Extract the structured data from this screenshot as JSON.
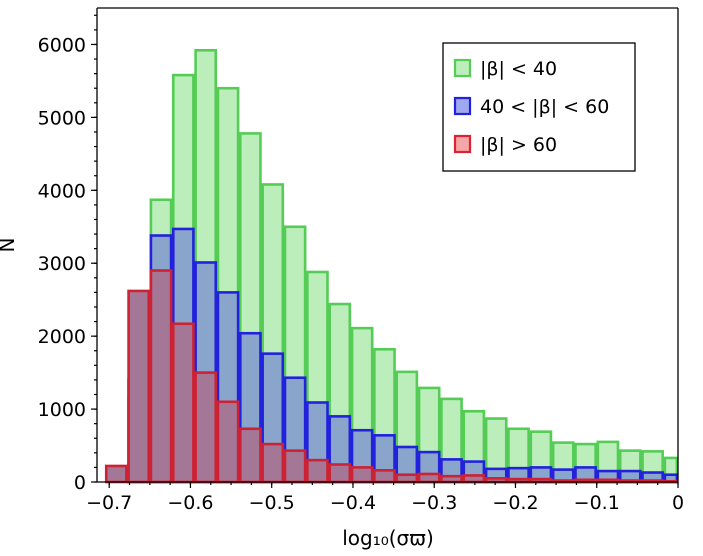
{
  "chart_data": {
    "type": "bar",
    "xlabel": "log₁₀(σϖ)",
    "ylabel": "N",
    "xlim": [
      -0.715,
      0.0
    ],
    "ylim": [
      0,
      6500
    ],
    "x_ticks": [
      -0.7,
      -0.6,
      -0.5,
      -0.4,
      -0.3,
      -0.2,
      -0.1,
      0.0
    ],
    "x_tick_labels": [
      "−0.7",
      "−0.6",
      "−0.5",
      "−0.4",
      "−0.3",
      "−0.2",
      "−0.1",
      "0"
    ],
    "y_ticks": [
      0,
      1000,
      2000,
      3000,
      4000,
      5000,
      6000
    ],
    "y_tick_labels": [
      "0",
      "1000",
      "2000",
      "3000",
      "4000",
      "5000",
      "6000"
    ],
    "bin_edges": [
      -0.705,
      -0.6775,
      -0.65,
      -0.6225,
      -0.595,
      -0.5675,
      -0.54,
      -0.5125,
      -0.485,
      -0.4575,
      -0.43,
      -0.4025,
      -0.375,
      -0.3475,
      -0.32,
      -0.2925,
      -0.265,
      -0.2375,
      -0.21,
      -0.1825,
      -0.155,
      -0.1275,
      -0.1,
      -0.0725,
      -0.045,
      -0.0175,
      0.0
    ],
    "legend_position": "top-right",
    "series": [
      {
        "name": "|β| < 40",
        "fill": "#bbeebb",
        "edge": "#55cc55",
        "values": [
          0,
          1150,
          3870,
          5580,
          5920,
          5400,
          4780,
          4080,
          3500,
          2880,
          2440,
          2110,
          1820,
          1510,
          1290,
          1140,
          970,
          870,
          730,
          690,
          540,
          520,
          550,
          430,
          420,
          330,
          300
        ]
      },
      {
        "name": "40 < |β| < 60",
        "fill": "#8aa5cc",
        "edge": "#2222dd",
        "values": [
          0,
          1400,
          3380,
          3470,
          3010,
          2600,
          2040,
          1760,
          1430,
          1090,
          900,
          710,
          640,
          480,
          410,
          310,
          280,
          180,
          190,
          200,
          170,
          200,
          150,
          150,
          130,
          100,
          100
        ]
      },
      {
        "name": "|β| > 60",
        "fill": "#a47797",
        "edge": "#cc2233",
        "values": [
          220,
          2620,
          2900,
          2170,
          1500,
          1100,
          730,
          520,
          430,
          300,
          240,
          200,
          160,
          100,
          110,
          80,
          90,
          50,
          40,
          40,
          20,
          30,
          30,
          20,
          20,
          10,
          10
        ]
      }
    ],
    "legend_entries": [
      {
        "label": "|β| < 40",
        "fill": "#bbeebb",
        "edge": "#55cc55"
      },
      {
        "label": "40 < |β| < 60",
        "fill": "#9fa8f0",
        "edge": "#2222dd"
      },
      {
        "label": "|β| > 60",
        "fill": "#f5a7a7",
        "edge": "#dd2233"
      }
    ]
  }
}
